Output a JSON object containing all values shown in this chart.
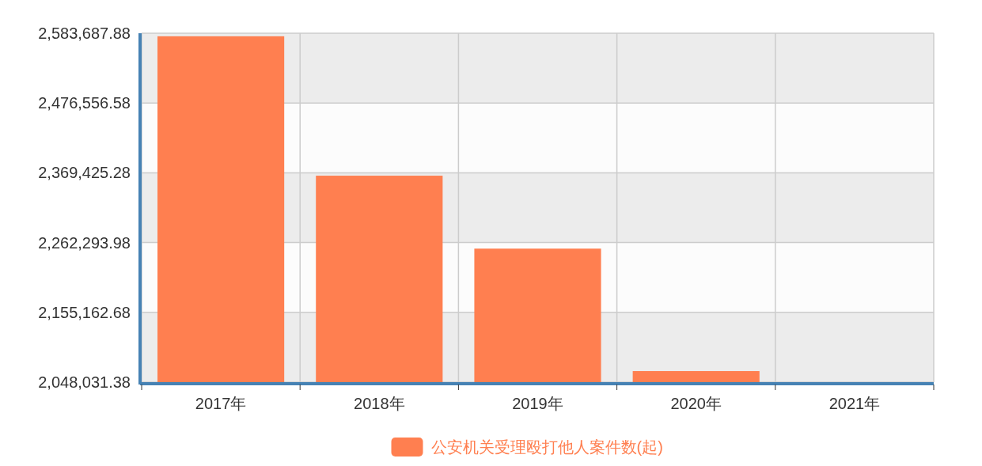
{
  "chart_data": {
    "type": "bar",
    "categories": [
      "2017年",
      "2018年",
      "2019年",
      "2020年",
      "2021年"
    ],
    "series": [
      {
        "name": "公安机关受理殴打他人案件数(起)",
        "color": "#ff7f50",
        "values": [
          2579000,
          2365000,
          2253000,
          2065000,
          null
        ]
      }
    ],
    "ylim": [
      2048031.38,
      2583687.88
    ],
    "yticks": [
      {
        "value": 2048031.38,
        "label": "2,048,031.38"
      },
      {
        "value": 2155162.68,
        "label": "2,155,162.68"
      },
      {
        "value": 2262293.98,
        "label": "2,262,293.98"
      },
      {
        "value": 2369425.28,
        "label": "2,369,425.28"
      },
      {
        "value": 2476556.58,
        "label": "2,476,556.58"
      },
      {
        "value": 2583687.88,
        "label": "2,583,687.88"
      }
    ],
    "grid": true,
    "legend": "bottom"
  }
}
